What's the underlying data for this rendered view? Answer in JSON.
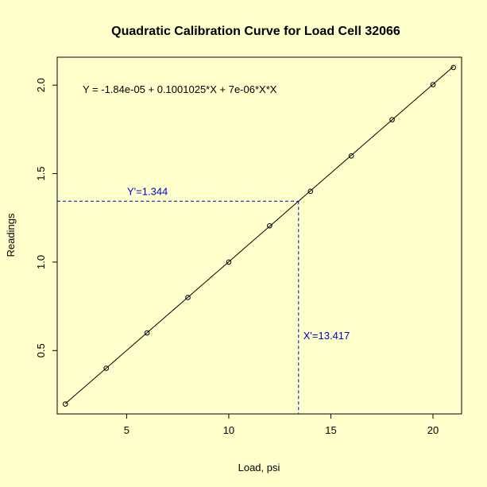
{
  "chart_data": {
    "type": "scatter",
    "title": "Quadratic Calibration Curve for Load Cell 32066",
    "xlabel": "Load, psi",
    "ylabel": "Readings",
    "xlim": [
      1.6,
      21.4
    ],
    "ylim": [
      0.142,
      2.158
    ],
    "x_ticks": [
      5,
      10,
      15,
      20
    ],
    "y_ticks": [
      0.5,
      1.0,
      1.5,
      2.0
    ],
    "x_tick_labels": [
      "5",
      "10",
      "15",
      "20"
    ],
    "y_tick_labels": [
      "0.5",
      "1.0",
      "1.5",
      "2.0"
    ],
    "grid": false,
    "series": [
      {
        "x": [
          2,
          4,
          6,
          8,
          10,
          12,
          14,
          16,
          18,
          20,
          21
        ],
        "y": [
          0.198,
          0.4,
          0.6,
          0.8,
          1.0,
          1.205,
          1.4,
          1.6,
          1.805,
          2.003,
          2.1
        ]
      }
    ],
    "fit": {
      "type": "quadratic",
      "coefficients": [
        -1.84e-05,
        0.1001025,
        7e-06
      ],
      "x_range": [
        2,
        21
      ]
    },
    "equation_text": "Y = -1.84e-05 + 0.1001025*X + 7e-06*X*X",
    "annotation": {
      "x_value": 13.417,
      "y_value": 1.344,
      "x_text": "X'=13.417",
      "y_text": "Y'=1.344",
      "color": "#0000cc"
    },
    "background_color": "#ffffcc"
  }
}
